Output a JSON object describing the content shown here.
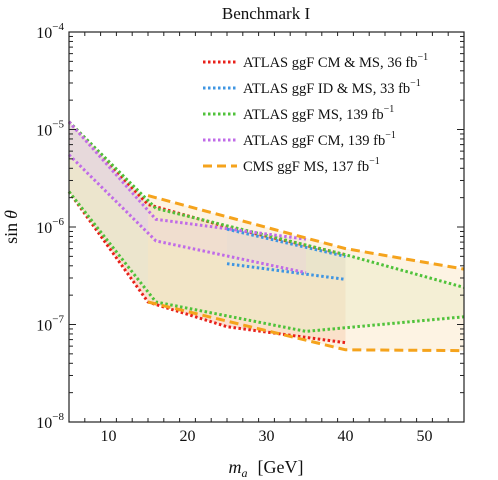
{
  "chart_data": {
    "type": "line",
    "title": "Benchmark I",
    "xlabel_var": "m",
    "xlabel_sub": "a",
    "xlabel_unit": "[GeV]",
    "ylabel": "sin θ",
    "ylabel_var": "sin",
    "ylabel_sym": "θ",
    "xlim": [
      5,
      55
    ],
    "ylim": [
      1e-08,
      0.0001
    ],
    "yscale": "log",
    "xticks": [
      10,
      20,
      30,
      40,
      50
    ],
    "yticks": [
      {
        "value": 1e-08,
        "mant": "10",
        "exp": "−8"
      },
      {
        "value": 1e-07,
        "mant": "10",
        "exp": "−7"
      },
      {
        "value": 1e-06,
        "mant": "10",
        "exp": "−6"
      },
      {
        "value": 1e-05,
        "mant": "10",
        "exp": "−5"
      },
      {
        "value": 0.0001,
        "mant": "10",
        "exp": "−4"
      }
    ],
    "legend_position": "top-right",
    "series": [
      {
        "name": "ATLAS ggF CM & MS, 36 fb",
        "lumi_exp": "−1",
        "color": "#e8201a",
        "fill": "#f3b89a",
        "dash": "dotted",
        "upper": [
          [
            5,
            1.2e-05
          ],
          [
            15,
            1.7e-06
          ],
          [
            25,
            1e-06
          ],
          [
            40,
            5.2e-07
          ]
        ],
        "lower": [
          [
            5,
            2.3e-06
          ],
          [
            15,
            1.7e-07
          ],
          [
            25,
            9.5e-08
          ],
          [
            40,
            6.5e-08
          ]
        ]
      },
      {
        "name": "ATLAS ggF ID & MS, 33 fb",
        "lumi_exp": "−1",
        "color": "#3e95e2",
        "fill": "#b7d6ee",
        "dash": "dotted",
        "upper": [
          [
            25,
            9.5e-07
          ],
          [
            40,
            5e-07
          ]
        ],
        "lower": [
          [
            25,
            4.2e-07
          ],
          [
            40,
            2.9e-07
          ]
        ]
      },
      {
        "name": "ATLAS ggF MS, 139 fb",
        "lumi_exp": "−1",
        "color": "#4fc23a",
        "fill": "#dbeec8",
        "dash": "dotted",
        "upper": [
          [
            5,
            1.2e-05
          ],
          [
            16,
            1.55e-06
          ],
          [
            40,
            5.2e-07
          ],
          [
            55,
            2.4e-07
          ]
        ],
        "lower": [
          [
            5,
            2.3e-06
          ],
          [
            16,
            1.7e-07
          ],
          [
            35,
            8.5e-08
          ],
          [
            55,
            1.2e-07
          ]
        ]
      },
      {
        "name": "ATLAS ggF CM, 139 fb",
        "lumi_exp": "−1",
        "color": "#c06be8",
        "fill": "#e3c9ee",
        "dash": "dotted",
        "upper": [
          [
            5,
            1.2e-05
          ],
          [
            16,
            1.2e-06
          ],
          [
            35,
            7.5e-07
          ]
        ],
        "lower": [
          [
            5,
            5.5e-06
          ],
          [
            16,
            7.2e-07
          ],
          [
            35,
            3.4e-07
          ]
        ]
      },
      {
        "name": "CMS ggF MS, 137 fb",
        "lumi_exp": "−1",
        "color": "#f5a31c",
        "fill": "#fbe4c0",
        "dash": "dashed",
        "upper": [
          [
            15,
            2.1e-06
          ],
          [
            40,
            6e-07
          ],
          [
            55,
            3.7e-07
          ]
        ],
        "lower": [
          [
            15,
            1.7e-07
          ],
          [
            40,
            5.5e-08
          ],
          [
            55,
            5.4e-08
          ]
        ]
      }
    ]
  }
}
